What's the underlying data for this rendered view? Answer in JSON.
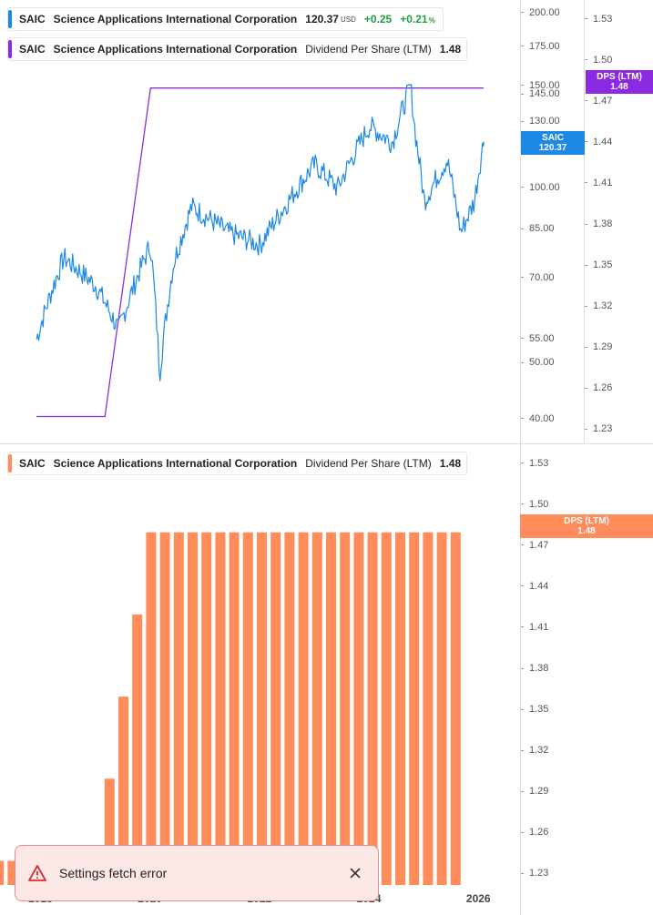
{
  "legend_price": {
    "ticker": "SAIC",
    "name": "Science Applications International Corporation",
    "price": "120.37",
    "currency": "USD",
    "change": "+0.25",
    "change_pct": "+0.21",
    "pct_sign": "%",
    "color": "#1e88e5"
  },
  "legend_dps_top": {
    "ticker": "SAIC",
    "name": "Science Applications International Corporation",
    "metric": "Dividend Per Share (LTM)",
    "value": "1.48",
    "color": "#8a2be2"
  },
  "legend_dps_bottom": {
    "ticker": "SAIC",
    "name": "Science Applications International Corporation",
    "metric": "Dividend Per Share (LTM)",
    "value": "1.48",
    "color": "#ff8c5a"
  },
  "price_axis_ticks": [
    "200.00",
    "175.00",
    "150.00",
    "145.00",
    "130.00",
    "115.00",
    "100.00",
    "85.00",
    "70.00",
    "55.00",
    "50.00",
    "40.00"
  ],
  "dps_axis_ticks_top": [
    "1.53",
    "1.50",
    "1.47",
    "1.44",
    "1.41",
    "1.38",
    "1.35",
    "1.32",
    "1.29",
    "1.26",
    "1.23"
  ],
  "dps_axis_ticks_bottom": [
    "1.53",
    "1.50",
    "1.47",
    "1.44",
    "1.41",
    "1.38",
    "1.35",
    "1.32",
    "1.29",
    "1.26",
    "1.23"
  ],
  "badges": {
    "dps_top": {
      "label": "DPS (LTM)",
      "value": "1.48",
      "color": "#8a2be2"
    },
    "saic": {
      "label": "SAIC",
      "value": "120.37",
      "color": "#1e88e5"
    },
    "dps_bottom": {
      "label": "DPS (LTM)",
      "value": "1.48",
      "color": "#ff8c5a"
    }
  },
  "x_axis_labels": [
    "2018",
    "2020",
    "2022",
    "2024",
    "2026"
  ],
  "toast": {
    "message": "Settings fetch error"
  },
  "chart_data": [
    {
      "type": "line",
      "series": [
        {
          "name": "SAIC",
          "x": [
            "2017-12",
            "2018-06",
            "2019-01",
            "2019-06",
            "2020-01",
            "2020-03",
            "2020-06",
            "2020-10",
            "2021-06",
            "2022-01",
            "2022-06",
            "2023-01",
            "2023-06",
            "2024-01",
            "2024-06",
            "2024-10",
            "2024-11",
            "2025-01",
            "2025-06",
            "2025-09",
            "2025-12",
            "2026-02"
          ],
          "values": [
            55,
            76,
            68,
            57,
            80,
            48,
            74,
            93,
            84,
            80,
            92,
            110,
            100,
            128,
            120,
            150,
            125,
            95,
            112,
            84,
            95,
            120.37
          ]
        },
        {
          "name": "Dividend Per Share (LTM)",
          "x": [
            "2017-12",
            "2019-03",
            "2020-01",
            "2026-02"
          ],
          "values": [
            1.24,
            1.24,
            1.48,
            1.48
          ]
        }
      ],
      "y_scale": "log",
      "ylim": [
        38,
        205
      ]
    },
    {
      "type": "bar",
      "series": [
        {
          "name": "Dividend Per Share (LTM)",
          "values": [
            1.24,
            1.24,
            1.24,
            1.24,
            1.24,
            1.24,
            1.24,
            1.24,
            1.24,
            1.3,
            1.36,
            1.42,
            1.48,
            1.48,
            1.48,
            1.48,
            1.48,
            1.48,
            1.48,
            1.48,
            1.48,
            1.48,
            1.48,
            1.48,
            1.48,
            1.48,
            1.48,
            1.48,
            1.48,
            1.48,
            1.48,
            1.48,
            1.48,
            1.48,
            1.48
          ]
        }
      ],
      "ylim": [
        1.225,
        1.535
      ]
    }
  ]
}
